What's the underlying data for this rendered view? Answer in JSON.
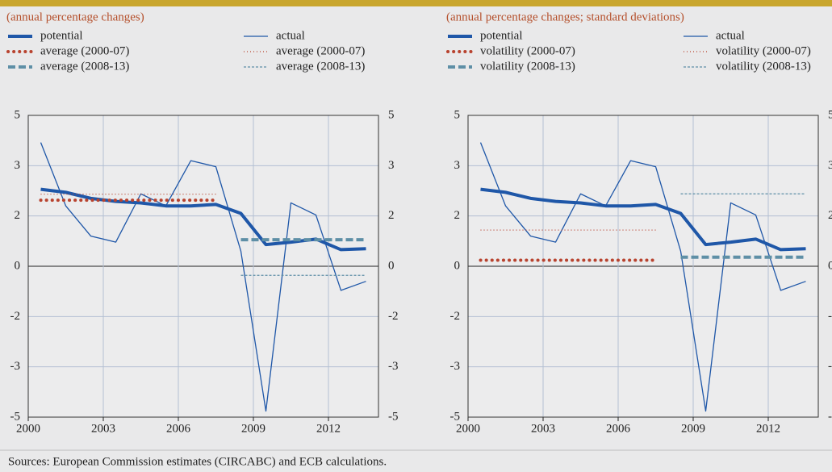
{
  "chart_data": [
    {
      "type": "line",
      "subtitle": "(annual percentage changes)",
      "x": [
        2000,
        2001,
        2002,
        2003,
        2004,
        2005,
        2006,
        2007,
        2008,
        2009,
        2010,
        2011,
        2012,
        2013
      ],
      "xlim": [
        2000,
        2014
      ],
      "xticks": [
        2000,
        2003,
        2006,
        2009,
        2012
      ],
      "ylim": [
        -5,
        5
      ],
      "yticks": [
        5,
        {
          "value": 3.333,
          "label": "3"
        },
        {
          "value": 1.667,
          "label": "2"
        },
        0,
        {
          "value": -1.667,
          "label": "-2"
        },
        {
          "value": -3.333,
          "label": "-3"
        },
        -5
      ],
      "grid": true,
      "series": [
        {
          "name": "potential",
          "color": "#1f57a8",
          "line_style": "solid",
          "line_width": "thick",
          "values": [
            2.55,
            2.45,
            2.25,
            2.15,
            2.1,
            2.0,
            2.0,
            2.05,
            1.75,
            0.72,
            0.8,
            0.9,
            0.55,
            0.58
          ]
        },
        {
          "name": "actual",
          "color": "#1f57a8",
          "line_style": "solid",
          "line_width": "thin",
          "values": [
            4.1,
            2.0,
            1.0,
            0.8,
            2.4,
            2.0,
            3.5,
            3.3,
            0.5,
            -4.8,
            2.1,
            1.7,
            -0.8,
            -0.5
          ]
        },
        {
          "name": "average (2000-07)",
          "color": "#b8432f",
          "line_style": "dotted",
          "line_width": "thick",
          "x": [
            2000,
            2007
          ],
          "value": 2.19
        },
        {
          "name": "average (2000-07)",
          "color": "#b8432f",
          "line_style": "dotted",
          "line_width": "thin",
          "x": [
            2000,
            2007
          ],
          "value": 2.39
        },
        {
          "name": "average (2008-13)",
          "color": "#5e8fa6",
          "line_style": "dashed",
          "line_width": "thick",
          "x": [
            2008,
            2013
          ],
          "value": 0.88
        },
        {
          "name": "average (2008-13)",
          "color": "#5e8fa6",
          "line_style": "dashed",
          "line_width": "thin",
          "x": [
            2008,
            2013
          ],
          "value": -0.3
        }
      ]
    },
    {
      "type": "line",
      "subtitle": "(annual percentage changes; standard deviations)",
      "x": [
        2000,
        2001,
        2002,
        2003,
        2004,
        2005,
        2006,
        2007,
        2008,
        2009,
        2010,
        2011,
        2012,
        2013
      ],
      "xlim": [
        2000,
        2014
      ],
      "xticks": [
        2000,
        2003,
        2006,
        2009,
        2012
      ],
      "ylim": [
        -5,
        5
      ],
      "yticks": [
        5,
        {
          "value": 3.333,
          "label": "3"
        },
        {
          "value": 1.667,
          "label": "2"
        },
        0,
        {
          "value": -1.667,
          "label": "-2"
        },
        {
          "value": -3.333,
          "label": "-3"
        },
        -5
      ],
      "grid": true,
      "series": [
        {
          "name": "potential",
          "color": "#1f57a8",
          "line_style": "solid",
          "line_width": "thick",
          "values": [
            2.55,
            2.45,
            2.25,
            2.15,
            2.1,
            2.0,
            2.0,
            2.05,
            1.75,
            0.72,
            0.8,
            0.9,
            0.55,
            0.58
          ]
        },
        {
          "name": "actual",
          "color": "#1f57a8",
          "line_style": "solid",
          "line_width": "thin",
          "values": [
            4.1,
            2.0,
            1.0,
            0.8,
            2.4,
            2.0,
            3.5,
            3.3,
            0.5,
            -4.8,
            2.1,
            1.7,
            -0.8,
            -0.5
          ]
        },
        {
          "name": "volatility (2000-07)",
          "color": "#b8432f",
          "line_style": "dotted",
          "line_width": "thick",
          "x": [
            2000,
            2007
          ],
          "value": 0.2
        },
        {
          "name": "volatility (2000-07)",
          "color": "#b8432f",
          "line_style": "dotted",
          "line_width": "thin",
          "x": [
            2000,
            2007
          ],
          "value": 1.2
        },
        {
          "name": "volatility (2008-13)",
          "color": "#5e8fa6",
          "line_style": "dashed",
          "line_width": "thick",
          "x": [
            2008,
            2013
          ],
          "value": 0.3
        },
        {
          "name": "volatility (2008-13)",
          "color": "#5e8fa6",
          "line_style": "dashed",
          "line_width": "thin",
          "x": [
            2008,
            2013
          ],
          "value": 2.4
        }
      ]
    }
  ],
  "source": "Sources: European Commission estimates (CIRCABC) and ECB calculations."
}
